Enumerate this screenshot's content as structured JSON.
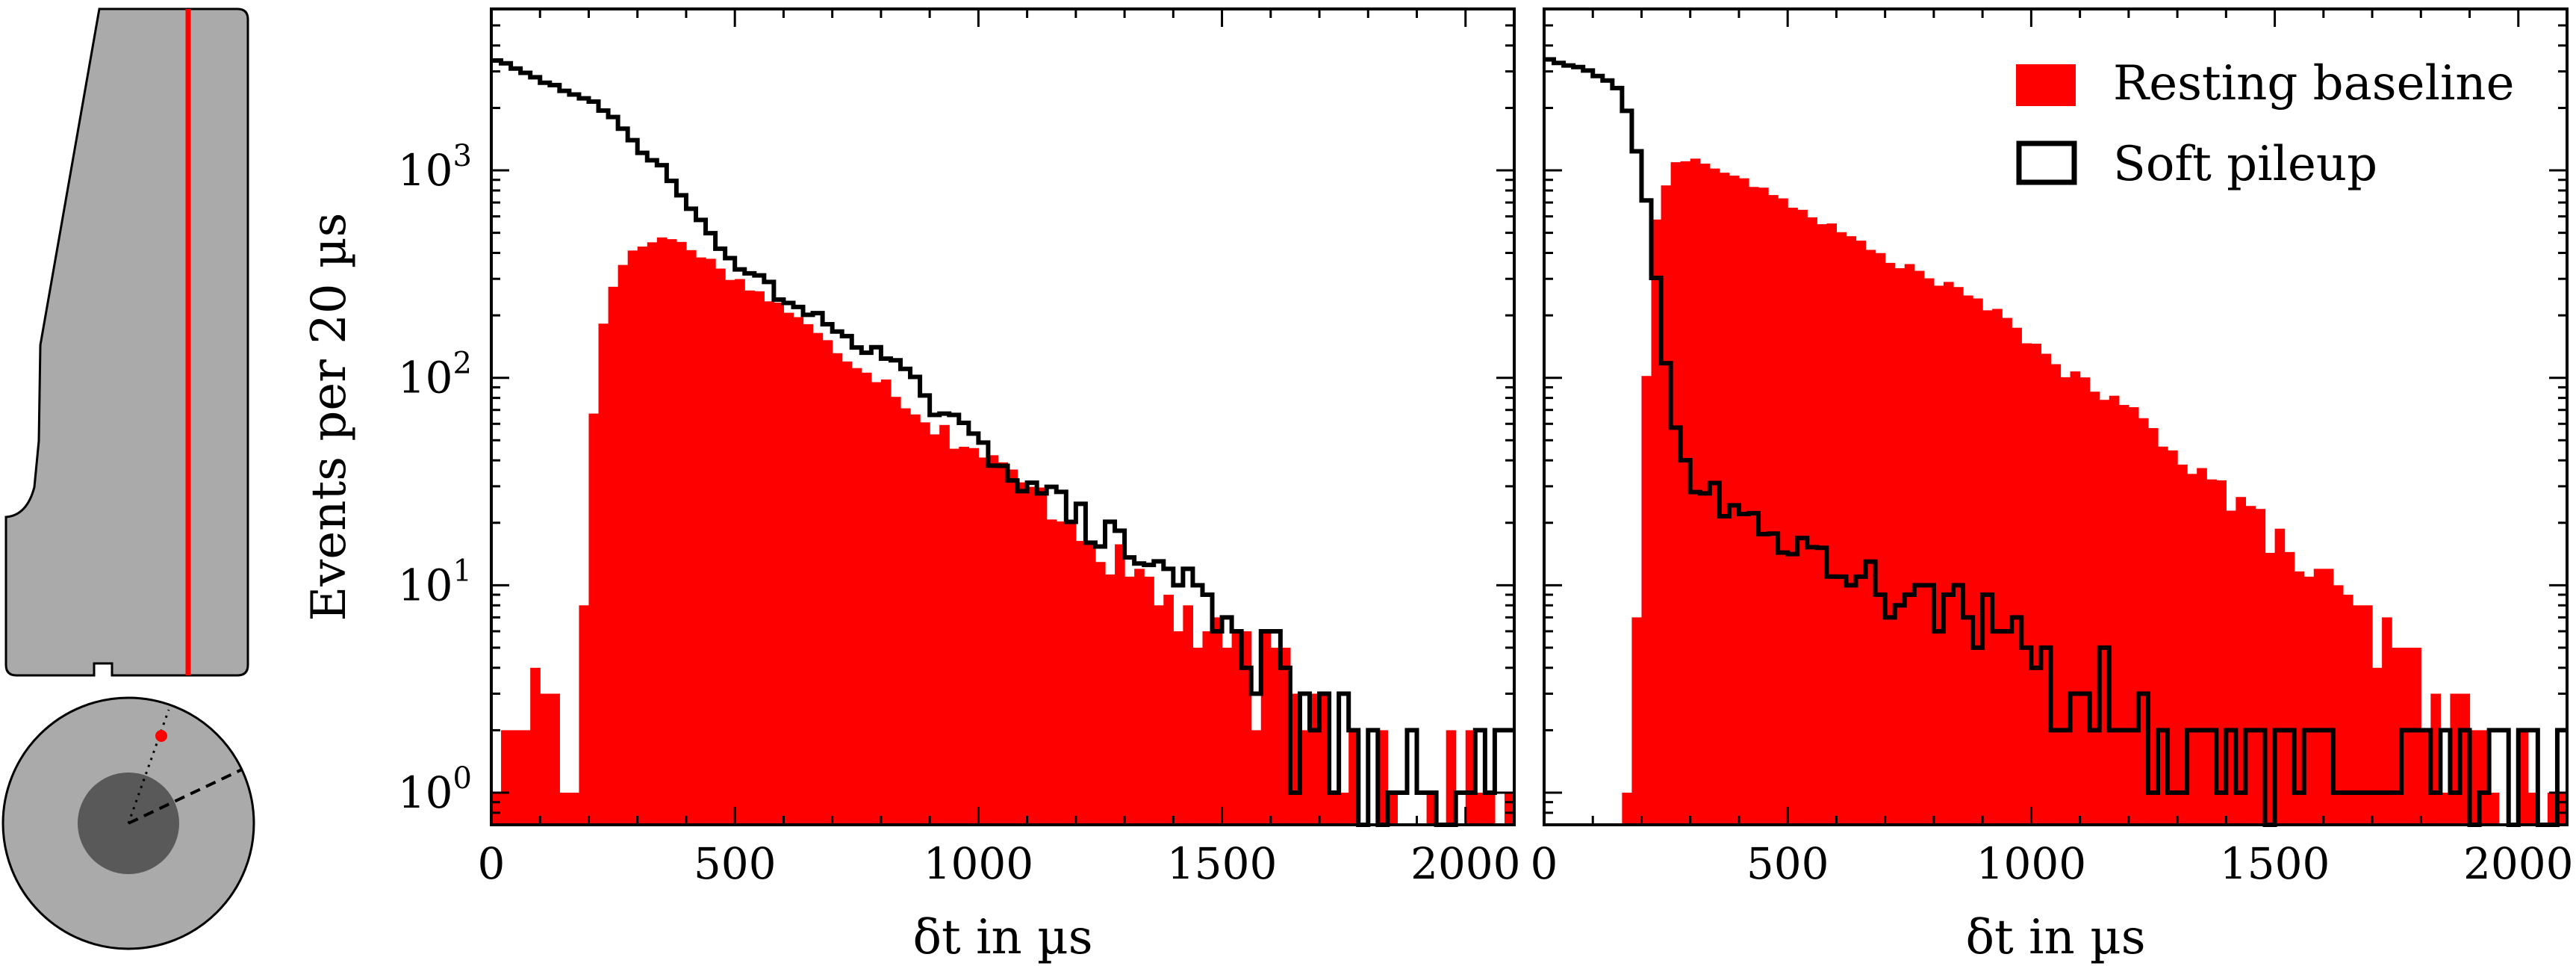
{
  "chart_data": [
    {
      "type": "histogram",
      "scale": "log",
      "xlabel": "δt in µs",
      "ylabel": "Events per 20 µs",
      "xlim": [
        0,
        2100
      ],
      "ylim": [
        0.7,
        6000
      ],
      "bin_width": 20,
      "x_ticks": [
        "0",
        "500",
        "1000",
        "1500",
        "2000"
      ],
      "y_ticks": [
        {
          "base": "10",
          "exp": "0"
        },
        {
          "base": "10",
          "exp": "1"
        },
        {
          "base": "10",
          "exp": "2"
        },
        {
          "base": "10",
          "exp": "3"
        }
      ],
      "series": [
        {
          "name": "Resting baseline",
          "style": "filled",
          "color": "#ff0000",
          "anchors": [
            [
              0,
              1
            ],
            [
              100,
              4
            ],
            [
              160,
              2
            ],
            [
              180,
              2
            ],
            [
              200,
              30
            ],
            [
              220,
              150
            ],
            [
              260,
              350
            ],
            [
              320,
              450
            ],
            [
              360,
              480
            ],
            [
              420,
              410
            ],
            [
              500,
              300
            ],
            [
              600,
              220
            ],
            [
              700,
              140
            ],
            [
              800,
              100
            ],
            [
              900,
              60
            ],
            [
              1000,
              44
            ],
            [
              1100,
              30
            ],
            [
              1200,
              20
            ],
            [
              1300,
              12
            ],
            [
              1400,
              8
            ],
            [
              1500,
              5
            ],
            [
              1600,
              4
            ],
            [
              1700,
              2.5
            ],
            [
              1800,
              1.4
            ],
            [
              1900,
              1
            ],
            [
              2000,
              1
            ],
            [
              2100,
              1
            ]
          ]
        },
        {
          "name": "Soft pileup",
          "style": "step",
          "color": "#000000",
          "anchors": [
            [
              0,
              3500
            ],
            [
              60,
              3000
            ],
            [
              120,
              2600
            ],
            [
              200,
              2200
            ],
            [
              260,
              1700
            ],
            [
              300,
              1300
            ],
            [
              360,
              1000
            ],
            [
              400,
              700
            ],
            [
              460,
              450
            ],
            [
              500,
              360
            ],
            [
              560,
              290
            ],
            [
              600,
              240
            ],
            [
              660,
              200
            ],
            [
              700,
              175
            ],
            [
              800,
              130
            ],
            [
              860,
              100
            ],
            [
              900,
              75
            ],
            [
              1000,
              48
            ],
            [
              1100,
              32
            ],
            [
              1200,
              22
            ],
            [
              1300,
              15
            ],
            [
              1400,
              11
            ],
            [
              1500,
              8
            ],
            [
              1550,
              6
            ],
            [
              1600,
              4
            ],
            [
              1650,
              3
            ],
            [
              1700,
              2
            ],
            [
              1750,
              1.5
            ],
            [
              1800,
              1
            ],
            [
              1900,
              1
            ],
            [
              2000,
              1
            ],
            [
              2100,
              1
            ]
          ]
        }
      ]
    },
    {
      "type": "histogram",
      "scale": "log",
      "xlabel": "δt in µs",
      "ylabel": "",
      "xlim": [
        0,
        2100
      ],
      "ylim": [
        0.7,
        6000
      ],
      "bin_width": 20,
      "x_ticks": [
        "0",
        "500",
        "1000",
        "1500",
        "2000"
      ],
      "legend": {
        "position": "top-right"
      },
      "series": [
        {
          "name": "Resting baseline",
          "style": "filled",
          "color": "#ff0000",
          "anchors": [
            [
              0,
              0
            ],
            [
              150,
              0
            ],
            [
              160,
              1
            ],
            [
              190,
              5
            ],
            [
              210,
              100
            ],
            [
              230,
              600
            ],
            [
              260,
              1050
            ],
            [
              300,
              1150
            ],
            [
              400,
              920
            ],
            [
              500,
              700
            ],
            [
              600,
              520
            ],
            [
              700,
              380
            ],
            [
              800,
              300
            ],
            [
              900,
              230
            ],
            [
              1000,
              150
            ],
            [
              1100,
              95
            ],
            [
              1200,
              70
            ],
            [
              1300,
              45
            ],
            [
              1400,
              28
            ],
            [
              1500,
              17
            ],
            [
              1600,
              10
            ],
            [
              1700,
              6
            ],
            [
              1800,
              3.5
            ],
            [
              1900,
              1.8
            ],
            [
              1950,
              1
            ],
            [
              2000,
              0.8
            ],
            [
              2100,
              0.8
            ]
          ]
        },
        {
          "name": "Soft pileup",
          "style": "step",
          "color": "#000000",
          "anchors": [
            [
              0,
              3500
            ],
            [
              100,
              3000
            ],
            [
              160,
              2400
            ],
            [
              200,
              1000
            ],
            [
              220,
              500
            ],
            [
              240,
              200
            ],
            [
              260,
              80
            ],
            [
              280,
              45
            ],
            [
              300,
              30
            ],
            [
              400,
              24
            ],
            [
              500,
              16
            ],
            [
              600,
              12
            ],
            [
              700,
              10
            ],
            [
              800,
              8.5
            ],
            [
              900,
              7
            ],
            [
              1000,
              5
            ],
            [
              1100,
              3.5
            ],
            [
              1200,
              2.5
            ],
            [
              1300,
              1.5
            ],
            [
              1400,
              1.4
            ],
            [
              1500,
              1.3
            ],
            [
              1600,
              1.2
            ],
            [
              1700,
              1.1
            ],
            [
              1800,
              1
            ],
            [
              1900,
              1
            ],
            [
              2000,
              1
            ],
            [
              2100,
              1
            ]
          ]
        }
      ]
    }
  ],
  "inset": {
    "shape_fill": "#aaaaaa",
    "core_fill": "#595959",
    "marker_color": "#ff0000"
  }
}
